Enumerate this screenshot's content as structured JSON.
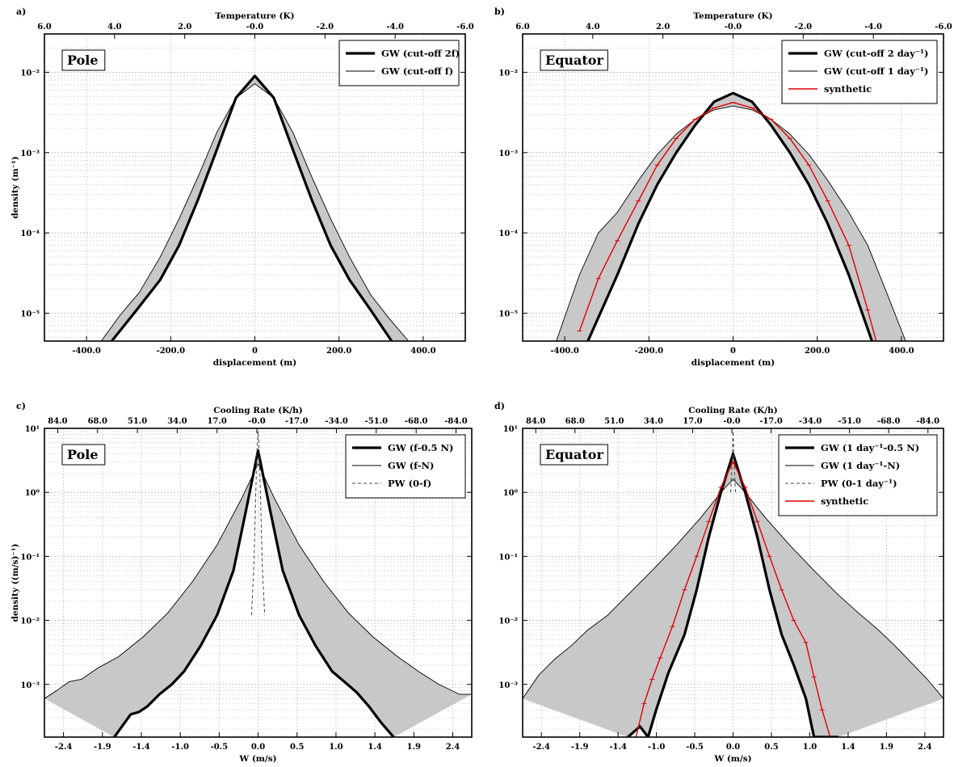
{
  "chart_data": [
    {
      "type": "line",
      "panel_label": "a)",
      "region_label": "Pole",
      "xlabel": "displacement (m)",
      "top_xlabel": "Temperature (K)",
      "ylabel": "density (m⁻¹)",
      "yscale": "log",
      "xlim": [
        -500,
        500
      ],
      "ylim": [
        4.5e-06,
        0.03
      ],
      "x_ticks": [
        "-400.0",
        "-200.0",
        "0",
        "200.0",
        "400.0"
      ],
      "top_ticks": [
        "6.0",
        "4.0",
        "2.0",
        "-0.0",
        "-2.0",
        "-4.0",
        "-6.0"
      ],
      "y_ticks": [
        "10⁻⁵",
        "10⁻⁴",
        "10⁻³",
        "10⁻²"
      ],
      "legend_position": "top-right",
      "series": [
        {
          "name": "GW (cut-off 2f)",
          "style": "thick",
          "x": [
            -340,
            -275,
            -225,
            -180,
            -135,
            -90,
            -45,
            0,
            45,
            90,
            135,
            180,
            225,
            275,
            325
          ],
          "values": [
            4.5e-06,
            1.2e-05,
            2.6e-05,
            7e-05,
            0.00026,
            0.0011,
            0.0048,
            0.009,
            0.0048,
            0.0011,
            0.00026,
            7e-05,
            2.6e-05,
            1.1e-05,
            4.5e-06
          ]
        },
        {
          "name": "GW (cut-off f)",
          "style": "thin",
          "x": [
            -365,
            -320,
            -275,
            -225,
            -180,
            -135,
            -90,
            -45,
            0,
            45,
            90,
            135,
            180,
            225,
            275,
            320,
            365
          ],
          "values": [
            4.5e-06,
            9.5e-06,
            1.8e-05,
            5e-05,
            0.00015,
            0.0005,
            0.0018,
            0.0048,
            0.0072,
            0.0048,
            0.0018,
            0.0005,
            0.00015,
            5e-05,
            1.7e-05,
            8.5e-06,
            4.5e-06
          ]
        }
      ]
    },
    {
      "type": "line",
      "panel_label": "b)",
      "region_label": "Equator",
      "xlabel": "displacement (m)",
      "top_xlabel": "Temperature (K)",
      "ylabel": "",
      "yscale": "log",
      "xlim": [
        -500,
        500
      ],
      "ylim": [
        4.5e-06,
        0.03
      ],
      "x_ticks": [
        "-400.0",
        "-200.0",
        "0",
        "200.0",
        "400.0"
      ],
      "top_ticks": [
        "6.0",
        "4.0",
        "2.0",
        "-0.0",
        "-2.0",
        "-4.0",
        "-6.0"
      ],
      "y_ticks": [
        "10⁻⁵",
        "10⁻⁴",
        "10⁻³",
        "10⁻²"
      ],
      "legend_position": "top-right",
      "series": [
        {
          "name": "GW (cut-off 2 day⁻¹)",
          "style": "thick",
          "x": [
            -345,
            -275,
            -225,
            -180,
            -135,
            -90,
            -45,
            0,
            45,
            90,
            135,
            180,
            225,
            275,
            330
          ],
          "values": [
            4.5e-06,
            3e-05,
            0.00013,
            0.0004,
            0.001,
            0.0022,
            0.0043,
            0.0055,
            0.0043,
            0.0022,
            0.001,
            0.0004,
            0.00013,
            3e-05,
            4.5e-06
          ]
        },
        {
          "name": "GW (cut-off 1 day⁻¹)",
          "style": "thin",
          "x": [
            -420,
            -365,
            -320,
            -275,
            -225,
            -180,
            -135,
            -90,
            -45,
            0,
            45,
            90,
            135,
            180,
            225,
            275,
            320,
            365,
            410
          ],
          "values": [
            4.5e-06,
            3e-05,
            0.0001,
            0.00018,
            0.00045,
            0.00095,
            0.0017,
            0.0026,
            0.0034,
            0.0038,
            0.0034,
            0.0026,
            0.0017,
            0.00095,
            0.00045,
            0.00018,
            7e-05,
            1.8e-05,
            4.5e-06
          ]
        },
        {
          "name": "synthetic",
          "style": "red",
          "x": [
            -365,
            -320,
            -275,
            -225,
            -180,
            -135,
            -90,
            -45,
            0,
            45,
            90,
            135,
            180,
            225,
            275,
            320,
            340
          ],
          "values": [
            6e-06,
            2.7e-05,
            8e-05,
            0.00025,
            0.0007,
            0.0015,
            0.0026,
            0.0036,
            0.0042,
            0.0036,
            0.0026,
            0.0015,
            0.0007,
            0.00025,
            7e-05,
            1.1e-05,
            4.5e-06
          ]
        }
      ]
    },
    {
      "type": "line",
      "panel_label": "c)",
      "region_label": "Pole",
      "xlabel": "W (m/s)",
      "top_xlabel": "Cooling Rate (K/h)",
      "ylabel": "density ((m/s)⁻¹)",
      "yscale": "log",
      "xlim": [
        -2.6,
        2.6
      ],
      "ylim": [
        0.00015,
        10
      ],
      "x_ticks": [
        "-2.4",
        "-1.9",
        "-1.4",
        "-1.0",
        "-0.5",
        "0.0",
        "0.5",
        "1.0",
        "1.4",
        "1.9",
        "2.4"
      ],
      "top_ticks": [
        "84.0",
        "68.0",
        "51.0",
        "34.0",
        "17.0",
        "-0.0",
        "-17.0",
        "-34.0",
        "-51.0",
        "-68.0",
        "-84.0"
      ],
      "y_ticks": [
        "10⁻³",
        "10⁻²",
        "10⁻¹",
        "10⁰",
        "10¹"
      ],
      "legend_position": "top-right",
      "series": [
        {
          "name": "GW (f-0.5 N)",
          "style": "thick",
          "x": [
            -1.75,
            -1.55,
            -1.45,
            -1.35,
            -1.2,
            -1.05,
            -0.9,
            -0.7,
            -0.5,
            -0.3,
            -0.15,
            0,
            0.15,
            0.3,
            0.5,
            0.7,
            0.9,
            1.05,
            1.2,
            1.35,
            1.5,
            1.65
          ],
          "values": [
            0.00015,
            0.00034,
            0.00037,
            0.00045,
            0.0007,
            0.001,
            0.0016,
            0.004,
            0.012,
            0.06,
            0.5,
            4.5,
            0.5,
            0.06,
            0.012,
            0.004,
            0.0016,
            0.0011,
            0.00075,
            0.00045,
            0.00025,
            0.00015
          ]
        },
        {
          "name": "GW (f-N)",
          "style": "thin",
          "x": [
            -2.6,
            -2.45,
            -2.3,
            -2.15,
            -1.95,
            -1.7,
            -1.4,
            -1.1,
            -0.8,
            -0.5,
            -0.2,
            0,
            0.2,
            0.5,
            0.8,
            1.1,
            1.4,
            1.7,
            1.95,
            2.2,
            2.45,
            2.6
          ],
          "values": [
            0.0006,
            0.0008,
            0.0011,
            0.0012,
            0.0018,
            0.0027,
            0.0055,
            0.013,
            0.04,
            0.15,
            0.8,
            2.8,
            0.8,
            0.15,
            0.04,
            0.013,
            0.0055,
            0.0027,
            0.0016,
            0.001,
            0.0007,
            0.0007
          ]
        },
        {
          "name": "PW (0-f)",
          "style": "dashed",
          "x": [
            -0.08,
            -0.05,
            -0.03,
            -0.01,
            0,
            0.01,
            0.03,
            0.05,
            0.08
          ],
          "values": [
            0.012,
            0.08,
            0.8,
            6,
            9,
            6,
            0.8,
            0.08,
            0.012
          ]
        }
      ]
    },
    {
      "type": "line",
      "panel_label": "d)",
      "region_label": "Equator",
      "xlabel": "W (m/s)",
      "top_xlabel": "Cooling Rate (K/h)",
      "ylabel": "",
      "yscale": "log",
      "xlim": [
        -2.6,
        2.6
      ],
      "ylim": [
        0.00015,
        10
      ],
      "x_ticks": [
        "-2.4",
        "-1.9",
        "-1.4",
        "-1.0",
        "-0.5",
        "0.0",
        "0.5",
        "1.0",
        "1.4",
        "1.9",
        "2.4"
      ],
      "top_ticks": [
        "84.0",
        "68.0",
        "51.0",
        "34.0",
        "17.0",
        "-0.0",
        "-17.0",
        "-34.0",
        "-51.0",
        "-68.0",
        "-84.0"
      ],
      "y_ticks": [
        "10⁻³",
        "10⁻²",
        "10⁻¹",
        "10⁰",
        "10¹"
      ],
      "legend_position": "top-right",
      "series": [
        {
          "name": "GW (1 day⁻¹-0.5 N)",
          "style": "thick",
          "x": [
            -1.3,
            -1.15,
            -1.05,
            -0.95,
            -0.8,
            -0.6,
            -0.45,
            -0.3,
            -0.15,
            0,
            0.15,
            0.3,
            0.45,
            0.6,
            0.75,
            0.9,
            1.0,
            1.15,
            1.3
          ],
          "values": [
            0.00015,
            0.00022,
            0.00015,
            0.0004,
            0.0015,
            0.006,
            0.03,
            0.2,
            1.0,
            4.0,
            1.0,
            0.2,
            0.03,
            0.006,
            0.002,
            0.0006,
            0.00015,
            0.00015,
            0.00015
          ]
        },
        {
          "name": "GW (1 day⁻¹-N)",
          "style": "thin",
          "x": [
            -2.6,
            -2.4,
            -2.2,
            -2.0,
            -1.8,
            -1.55,
            -1.3,
            -1.0,
            -0.7,
            -0.4,
            -0.15,
            0,
            0.15,
            0.4,
            0.7,
            1.0,
            1.3,
            1.55,
            1.8,
            2.0,
            2.2,
            2.4,
            2.6
          ],
          "values": [
            0.0006,
            0.0014,
            0.0025,
            0.004,
            0.007,
            0.012,
            0.025,
            0.06,
            0.15,
            0.4,
            1.0,
            1.6,
            1.0,
            0.4,
            0.15,
            0.06,
            0.025,
            0.013,
            0.007,
            0.004,
            0.0022,
            0.0012,
            0.0006
          ]
        },
        {
          "name": "PW (0-1 day⁻¹)",
          "style": "dashed",
          "x": [
            -0.03,
            -0.015,
            -0.005,
            0,
            0.005,
            0.015,
            0.03
          ],
          "values": [
            1.0,
            2.5,
            6,
            9,
            6,
            2.5,
            1.0
          ]
        },
        {
          "name": "synthetic",
          "style": "red",
          "x": [
            -1.2,
            -1.1,
            -1.0,
            -0.9,
            -0.75,
            -0.6,
            -0.45,
            -0.3,
            -0.15,
            0,
            0.15,
            0.3,
            0.45,
            0.6,
            0.75,
            0.9,
            1.0,
            1.1,
            1.2
          ],
          "values": [
            0.00015,
            0.0005,
            0.0012,
            0.0026,
            0.008,
            0.03,
            0.1,
            0.35,
            1.2,
            3.0,
            1.2,
            0.35,
            0.1,
            0.03,
            0.01,
            0.0045,
            0.0013,
            0.0004,
            0.00015
          ]
        }
      ]
    }
  ]
}
